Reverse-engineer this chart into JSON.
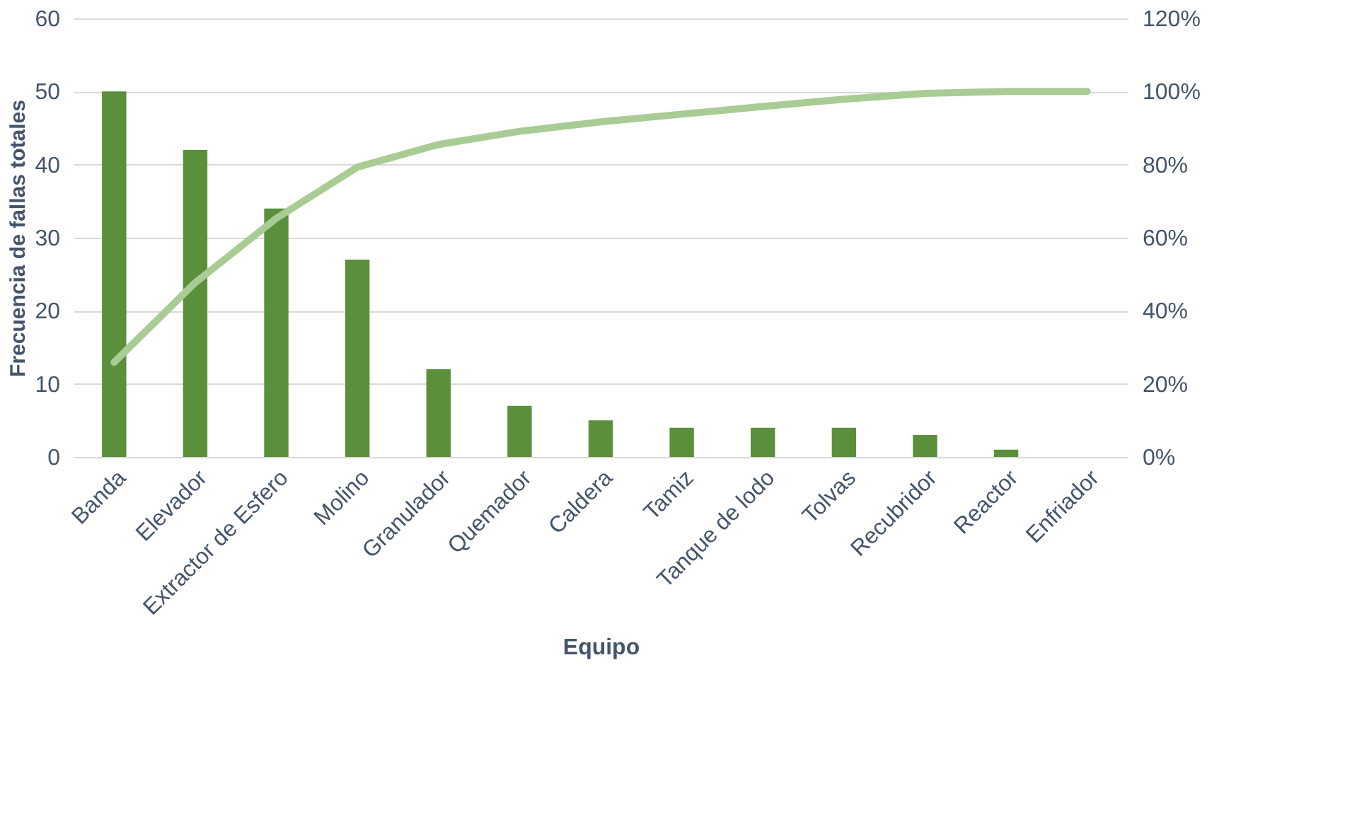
{
  "chart_data": {
    "type": "bar",
    "xlabel": "Equipo",
    "ylabel": "Frecuencia de fallas totales",
    "categories": [
      "Banda",
      "Elevador",
      "Extractor de Esfero",
      "Molino",
      "Granulador",
      "Quemador",
      "Caldera",
      "Tamiz",
      "Tanque de lodo",
      "Tolvas",
      "Recubridor",
      "Reactor",
      "Enfriador"
    ],
    "series": [
      {
        "color": "#5a8f3c",
        "values": [
          50,
          42,
          34,
          27,
          12,
          7,
          5,
          4,
          4,
          4,
          3,
          1,
          0
        ]
      },
      {
        "type": "line",
        "axis": "y2",
        "color": "#a9cc95",
        "values": [
          25.9,
          47.7,
          65.3,
          79.3,
          85.5,
          89.1,
          91.7,
          93.8,
          95.9,
          97.9,
          99.5,
          100,
          100
        ]
      }
    ],
    "ylim": [
      0,
      60
    ],
    "yticks": [
      0,
      10,
      20,
      30,
      40,
      50,
      60
    ],
    "y2lim": [
      0,
      120
    ],
    "y2ticks": [
      {
        "value": 0,
        "label": "0%"
      },
      {
        "value": 20,
        "label": "20%"
      },
      {
        "value": 40,
        "label": "40%"
      },
      {
        "value": 60,
        "label": "60%"
      },
      {
        "value": 80,
        "label": "80%"
      },
      {
        "value": 100,
        "label": "100%"
      },
      {
        "value": 120,
        "label": "120%"
      }
    ],
    "grid": "y",
    "marker": "none",
    "line_style": "solid"
  }
}
